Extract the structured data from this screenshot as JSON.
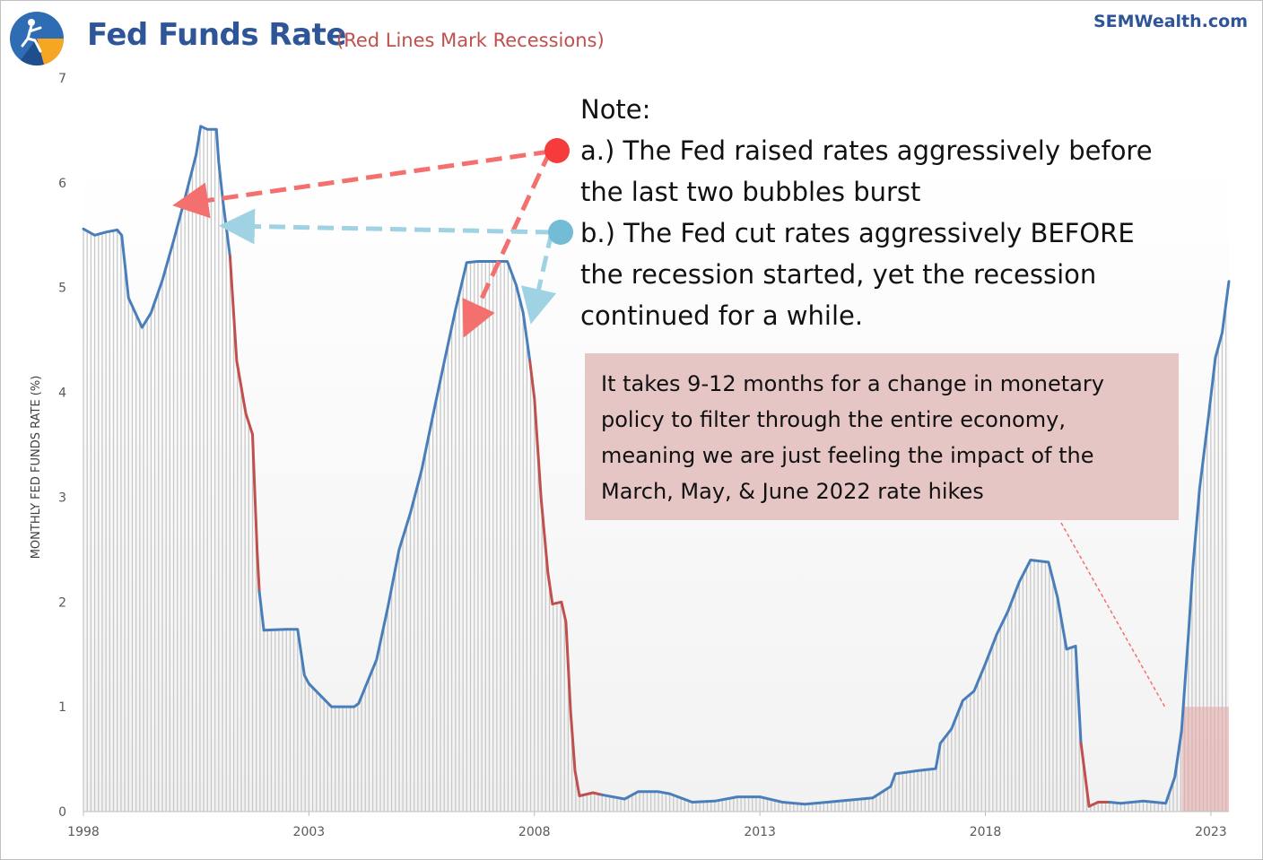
{
  "header": {
    "title": "Fed Funds Rate",
    "subtitle": "(Red Lines Mark Recessions)",
    "brand": "SEMWealth.com"
  },
  "notes": {
    "heading": "Note:",
    "lines": [
      "a.) The Fed raised rates aggressively before",
      "the last two bubbles burst",
      "b.) The Fed cut rates aggressively BEFORE",
      "the recession started, yet the recession",
      "continued for a while."
    ]
  },
  "callout": {
    "lines": [
      "It takes 9-12 months for a change in monetary",
      "policy to filter through the entire economy,",
      "meaning we are just feeling the impact of the",
      "March, May, & June 2022 rate hikes"
    ]
  },
  "colors": {
    "line": "#4a7ebb",
    "recession": "#c0504d",
    "bars": "#c8c8c8",
    "arrow_red": "#f4706e",
    "arrow_blue": "#9fd3e3",
    "dot_red": "#f53b3b",
    "dot_blue": "#72bcd6",
    "highlight": "#e2aaaa"
  },
  "chart_data": {
    "type": "line",
    "title": "Fed Funds Rate",
    "ylabel": "MONTHLY FED FUNDS RATE (%)",
    "xlabel": "",
    "ylim": [
      0,
      7
    ],
    "xlim": [
      1998.0,
      2023.4
    ],
    "yticks": [
      "0",
      "1",
      "2",
      "3",
      "4",
      "5",
      "6",
      "7"
    ],
    "xticks": [
      "1998",
      "2003",
      "2008",
      "2013",
      "2018",
      "2023"
    ],
    "background_bars": true,
    "series": [
      {
        "points": [
          [
            1998.0,
            5.56
          ],
          [
            1998.25,
            5.5
          ],
          [
            1998.5,
            5.53
          ],
          [
            1998.75,
            5.55
          ],
          [
            1998.85,
            5.5
          ],
          [
            1999.0,
            4.9
          ],
          [
            1999.3,
            4.62
          ],
          [
            1999.5,
            4.76
          ],
          [
            1999.75,
            5.07
          ],
          [
            2000.0,
            5.45
          ],
          [
            2000.25,
            5.85
          ],
          [
            2000.5,
            6.27
          ],
          [
            2000.6,
            6.54
          ],
          [
            2000.75,
            6.51
          ],
          [
            2000.95,
            6.51
          ],
          [
            2001.0,
            6.2
          ],
          [
            2001.1,
            5.8
          ],
          [
            2001.25,
            5.3
          ]
        ]
      },
      {
        "recession": true,
        "points": [
          [
            2001.25,
            5.3
          ],
          [
            2001.4,
            4.3
          ],
          [
            2001.6,
            3.8
          ],
          [
            2001.75,
            3.6
          ],
          [
            2001.85,
            2.5
          ],
          [
            2001.9,
            2.1
          ]
        ]
      },
      {
        "points": [
          [
            2001.9,
            2.1
          ],
          [
            2002.0,
            1.73
          ],
          [
            2002.5,
            1.74
          ],
          [
            2002.75,
            1.74
          ],
          [
            2002.9,
            1.3
          ],
          [
            2003.0,
            1.22
          ],
          [
            2003.5,
            1.0
          ],
          [
            2004.0,
            1.0
          ],
          [
            2004.1,
            1.03
          ],
          [
            2004.5,
            1.45
          ],
          [
            2004.75,
            1.95
          ],
          [
            2005.0,
            2.5
          ],
          [
            2005.25,
            2.85
          ],
          [
            2005.5,
            3.26
          ],
          [
            2005.75,
            3.78
          ],
          [
            2006.0,
            4.29
          ],
          [
            2006.25,
            4.79
          ],
          [
            2006.5,
            5.24
          ],
          [
            2006.75,
            5.25
          ],
          [
            2007.0,
            5.25
          ],
          [
            2007.4,
            5.25
          ],
          [
            2007.6,
            5.02
          ],
          [
            2007.75,
            4.76
          ],
          [
            2007.9,
            4.3
          ]
        ]
      },
      {
        "recession": true,
        "points": [
          [
            2007.9,
            4.3
          ],
          [
            2008.0,
            3.94
          ],
          [
            2008.15,
            2.98
          ],
          [
            2008.3,
            2.28
          ],
          [
            2008.4,
            1.98
          ],
          [
            2008.6,
            2.0
          ],
          [
            2008.7,
            1.81
          ],
          [
            2008.8,
            0.97
          ],
          [
            2008.9,
            0.39
          ],
          [
            2009.0,
            0.15
          ],
          [
            2009.3,
            0.18
          ],
          [
            2009.5,
            0.16
          ]
        ]
      },
      {
        "points": [
          [
            2009.5,
            0.16
          ],
          [
            2010.0,
            0.12
          ],
          [
            2010.3,
            0.19
          ],
          [
            2010.75,
            0.19
          ],
          [
            2011.0,
            0.17
          ],
          [
            2011.5,
            0.09
          ],
          [
            2012.0,
            0.1
          ],
          [
            2012.5,
            0.14
          ],
          [
            2013.0,
            0.14
          ],
          [
            2013.5,
            0.09
          ],
          [
            2014.0,
            0.07
          ],
          [
            2014.5,
            0.09
          ],
          [
            2015.0,
            0.11
          ],
          [
            2015.5,
            0.13
          ],
          [
            2015.9,
            0.24
          ],
          [
            2016.0,
            0.36
          ],
          [
            2016.5,
            0.39
          ],
          [
            2016.9,
            0.41
          ],
          [
            2017.0,
            0.65
          ],
          [
            2017.25,
            0.79
          ],
          [
            2017.5,
            1.06
          ],
          [
            2017.75,
            1.15
          ],
          [
            2018.0,
            1.41
          ],
          [
            2018.25,
            1.69
          ],
          [
            2018.5,
            1.91
          ],
          [
            2018.75,
            2.19
          ],
          [
            2019.0,
            2.4
          ],
          [
            2019.4,
            2.38
          ],
          [
            2019.6,
            2.04
          ],
          [
            2019.8,
            1.55
          ],
          [
            2020.0,
            1.58
          ],
          [
            2020.12,
            0.65
          ]
        ]
      },
      {
        "recession": true,
        "points": [
          [
            2020.12,
            0.65
          ],
          [
            2020.3,
            0.05
          ],
          [
            2020.5,
            0.09
          ],
          [
            2020.75,
            0.09
          ]
        ]
      },
      {
        "points": [
          [
            2020.75,
            0.09
          ],
          [
            2021.0,
            0.08
          ],
          [
            2021.5,
            0.1
          ],
          [
            2022.0,
            0.08
          ],
          [
            2022.2,
            0.33
          ],
          [
            2022.35,
            0.77
          ],
          [
            2022.5,
            1.68
          ],
          [
            2022.6,
            2.33
          ],
          [
            2022.75,
            3.08
          ],
          [
            2022.95,
            3.78
          ],
          [
            2023.1,
            4.33
          ],
          [
            2023.25,
            4.57
          ],
          [
            2023.4,
            5.06
          ]
        ]
      }
    ],
    "highlight_region": {
      "x0": 2022.0,
      "x1": 2023.4,
      "y0": 0,
      "y1": 1
    }
  }
}
